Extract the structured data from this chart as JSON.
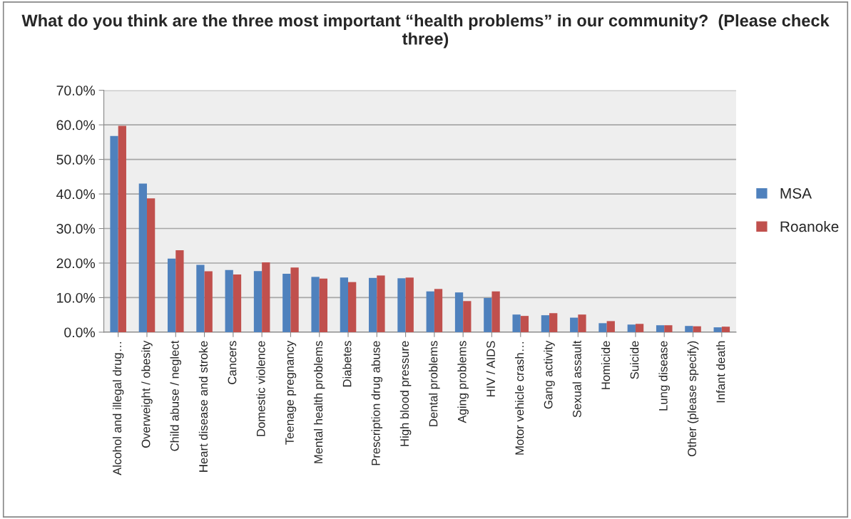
{
  "chart_data": {
    "type": "bar",
    "title": "What do you think are the three most important “health problems” in our community?  (Please check three)",
    "categories": [
      "Alcohol and illegal drug…",
      "Overweight / obesity",
      "Child abuse / neglect",
      "Heart disease and stroke",
      "Cancers",
      "Domestic violence",
      "Teenage pregnancy",
      "Mental health problems",
      "Diabetes",
      "Prescription drug abuse",
      "High blood pressure",
      "Dental problems",
      "Aging problems",
      "HIV / AIDS",
      "Motor vehicle crash…",
      "Gang activity",
      "Sexual assault",
      "Homicide",
      "Suicide",
      "Lung disease",
      "Other (please specify)",
      "Infant death"
    ],
    "series": [
      {
        "name": "MSA",
        "color": "#4f81bd",
        "values": [
          56.8,
          43.0,
          21.3,
          19.5,
          18.0,
          17.7,
          16.9,
          16.0,
          15.8,
          15.7,
          15.6,
          11.8,
          11.5,
          9.9,
          5.1,
          4.9,
          4.2,
          2.6,
          2.2,
          2.0,
          1.8,
          1.4
        ]
      },
      {
        "name": "Roanoke",
        "color": "#c0504d",
        "values": [
          59.7,
          38.7,
          23.7,
          17.6,
          16.7,
          20.2,
          18.7,
          15.5,
          14.5,
          16.4,
          15.8,
          12.5,
          9.0,
          11.8,
          4.7,
          5.5,
          5.1,
          3.2,
          2.4,
          2.0,
          1.7,
          1.6
        ]
      }
    ],
    "ylim": [
      0,
      70
    ],
    "yticks": [
      {
        "value": 0,
        "label": "0.0%"
      },
      {
        "value": 10,
        "label": "10.0%"
      },
      {
        "value": 20,
        "label": "20.0%"
      },
      {
        "value": 30,
        "label": "30.0%"
      },
      {
        "value": 40,
        "label": "40.0%"
      },
      {
        "value": 50,
        "label": "50.0%"
      },
      {
        "value": 60,
        "label": "60.0%"
      },
      {
        "value": 70,
        "label": "70.0%"
      }
    ],
    "grid": "y",
    "legend": "right"
  }
}
